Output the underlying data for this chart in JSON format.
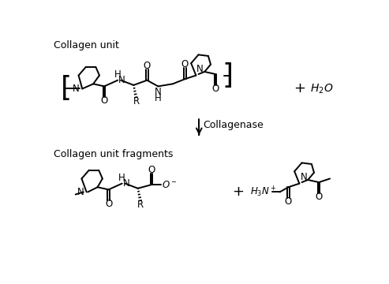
{
  "bg_color": "#ffffff",
  "text_color": "#000000",
  "title_top": "Collagen unit",
  "title_bottom": "Collagen unit fragments",
  "arrow_label": "Collagenase",
  "figsize": [
    4.93,
    3.6
  ],
  "dpi": 100
}
